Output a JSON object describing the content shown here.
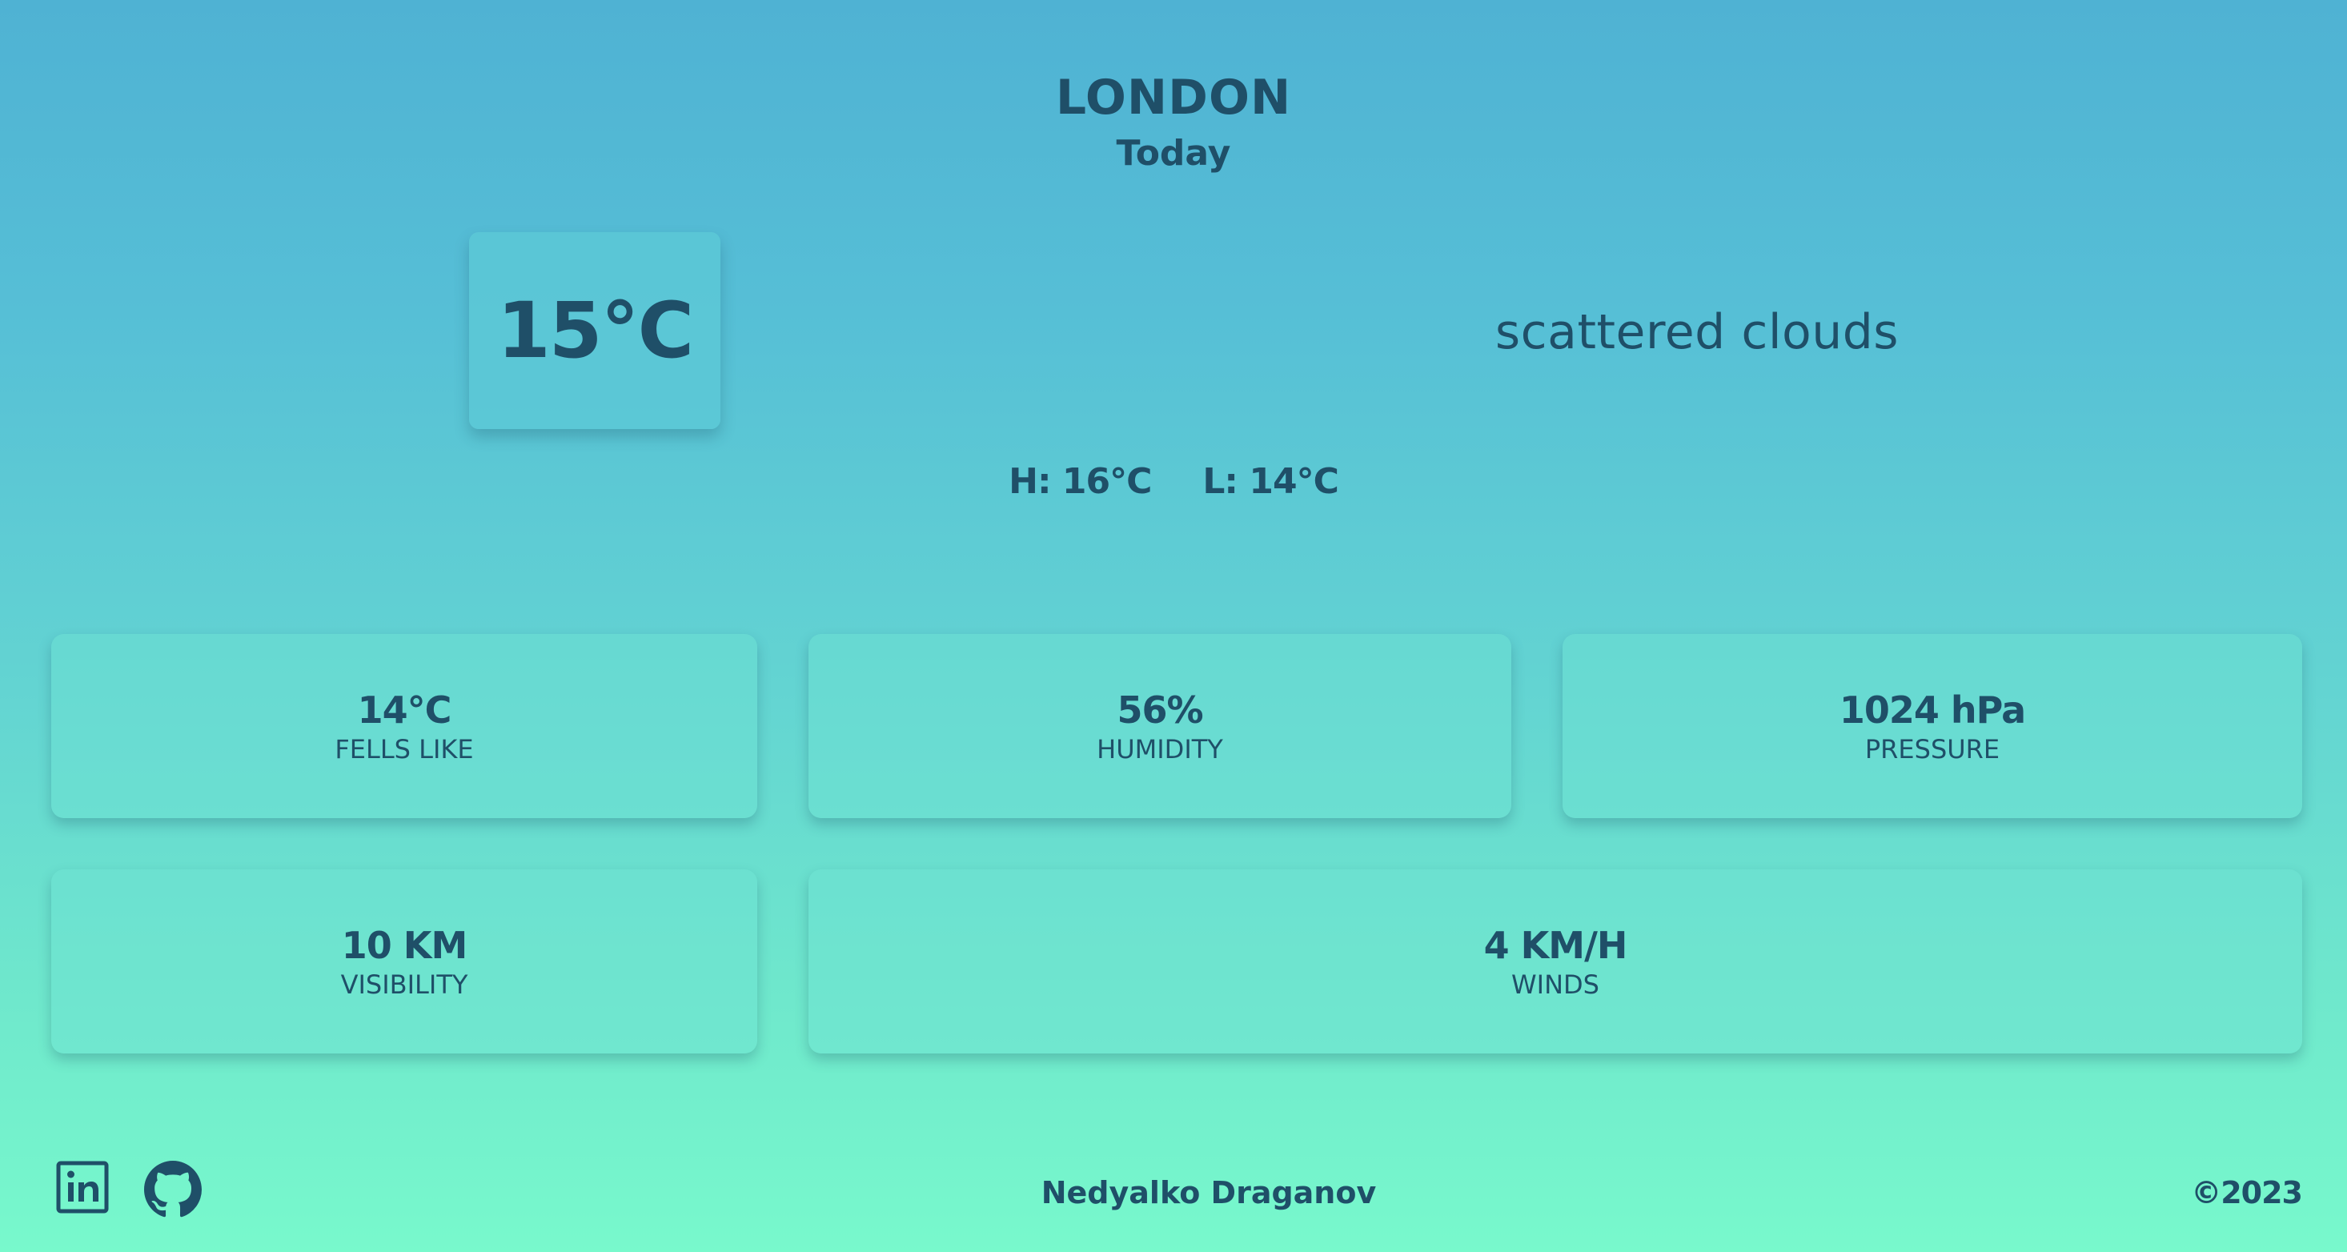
{
  "location": {
    "city": "LONDON",
    "day": "Today"
  },
  "current": {
    "temperature": "15°C",
    "description": "scattered clouds",
    "high": "H: 16°C",
    "low": "L: 14°C"
  },
  "details": {
    "feels_like": {
      "value": "14°C",
      "label": "FELLS LIKE"
    },
    "humidity": {
      "value": "56%",
      "label": "HUMIDITY"
    },
    "pressure": {
      "value": "1024 hPa",
      "label": "PRESSURE"
    },
    "visibility": {
      "value": "10 KM",
      "label": "VISIBILITY"
    },
    "winds": {
      "value": "4 KM/H",
      "label": "WINDS"
    }
  },
  "footer": {
    "icons": [
      "linkedin-icon",
      "github-icon"
    ],
    "author": "Nedyalko Draganov",
    "copyright": "©2023"
  },
  "colors": {
    "text": "#1f4f68",
    "gradient_top": "#4fb2d3",
    "gradient_bottom": "#78f9cc"
  }
}
